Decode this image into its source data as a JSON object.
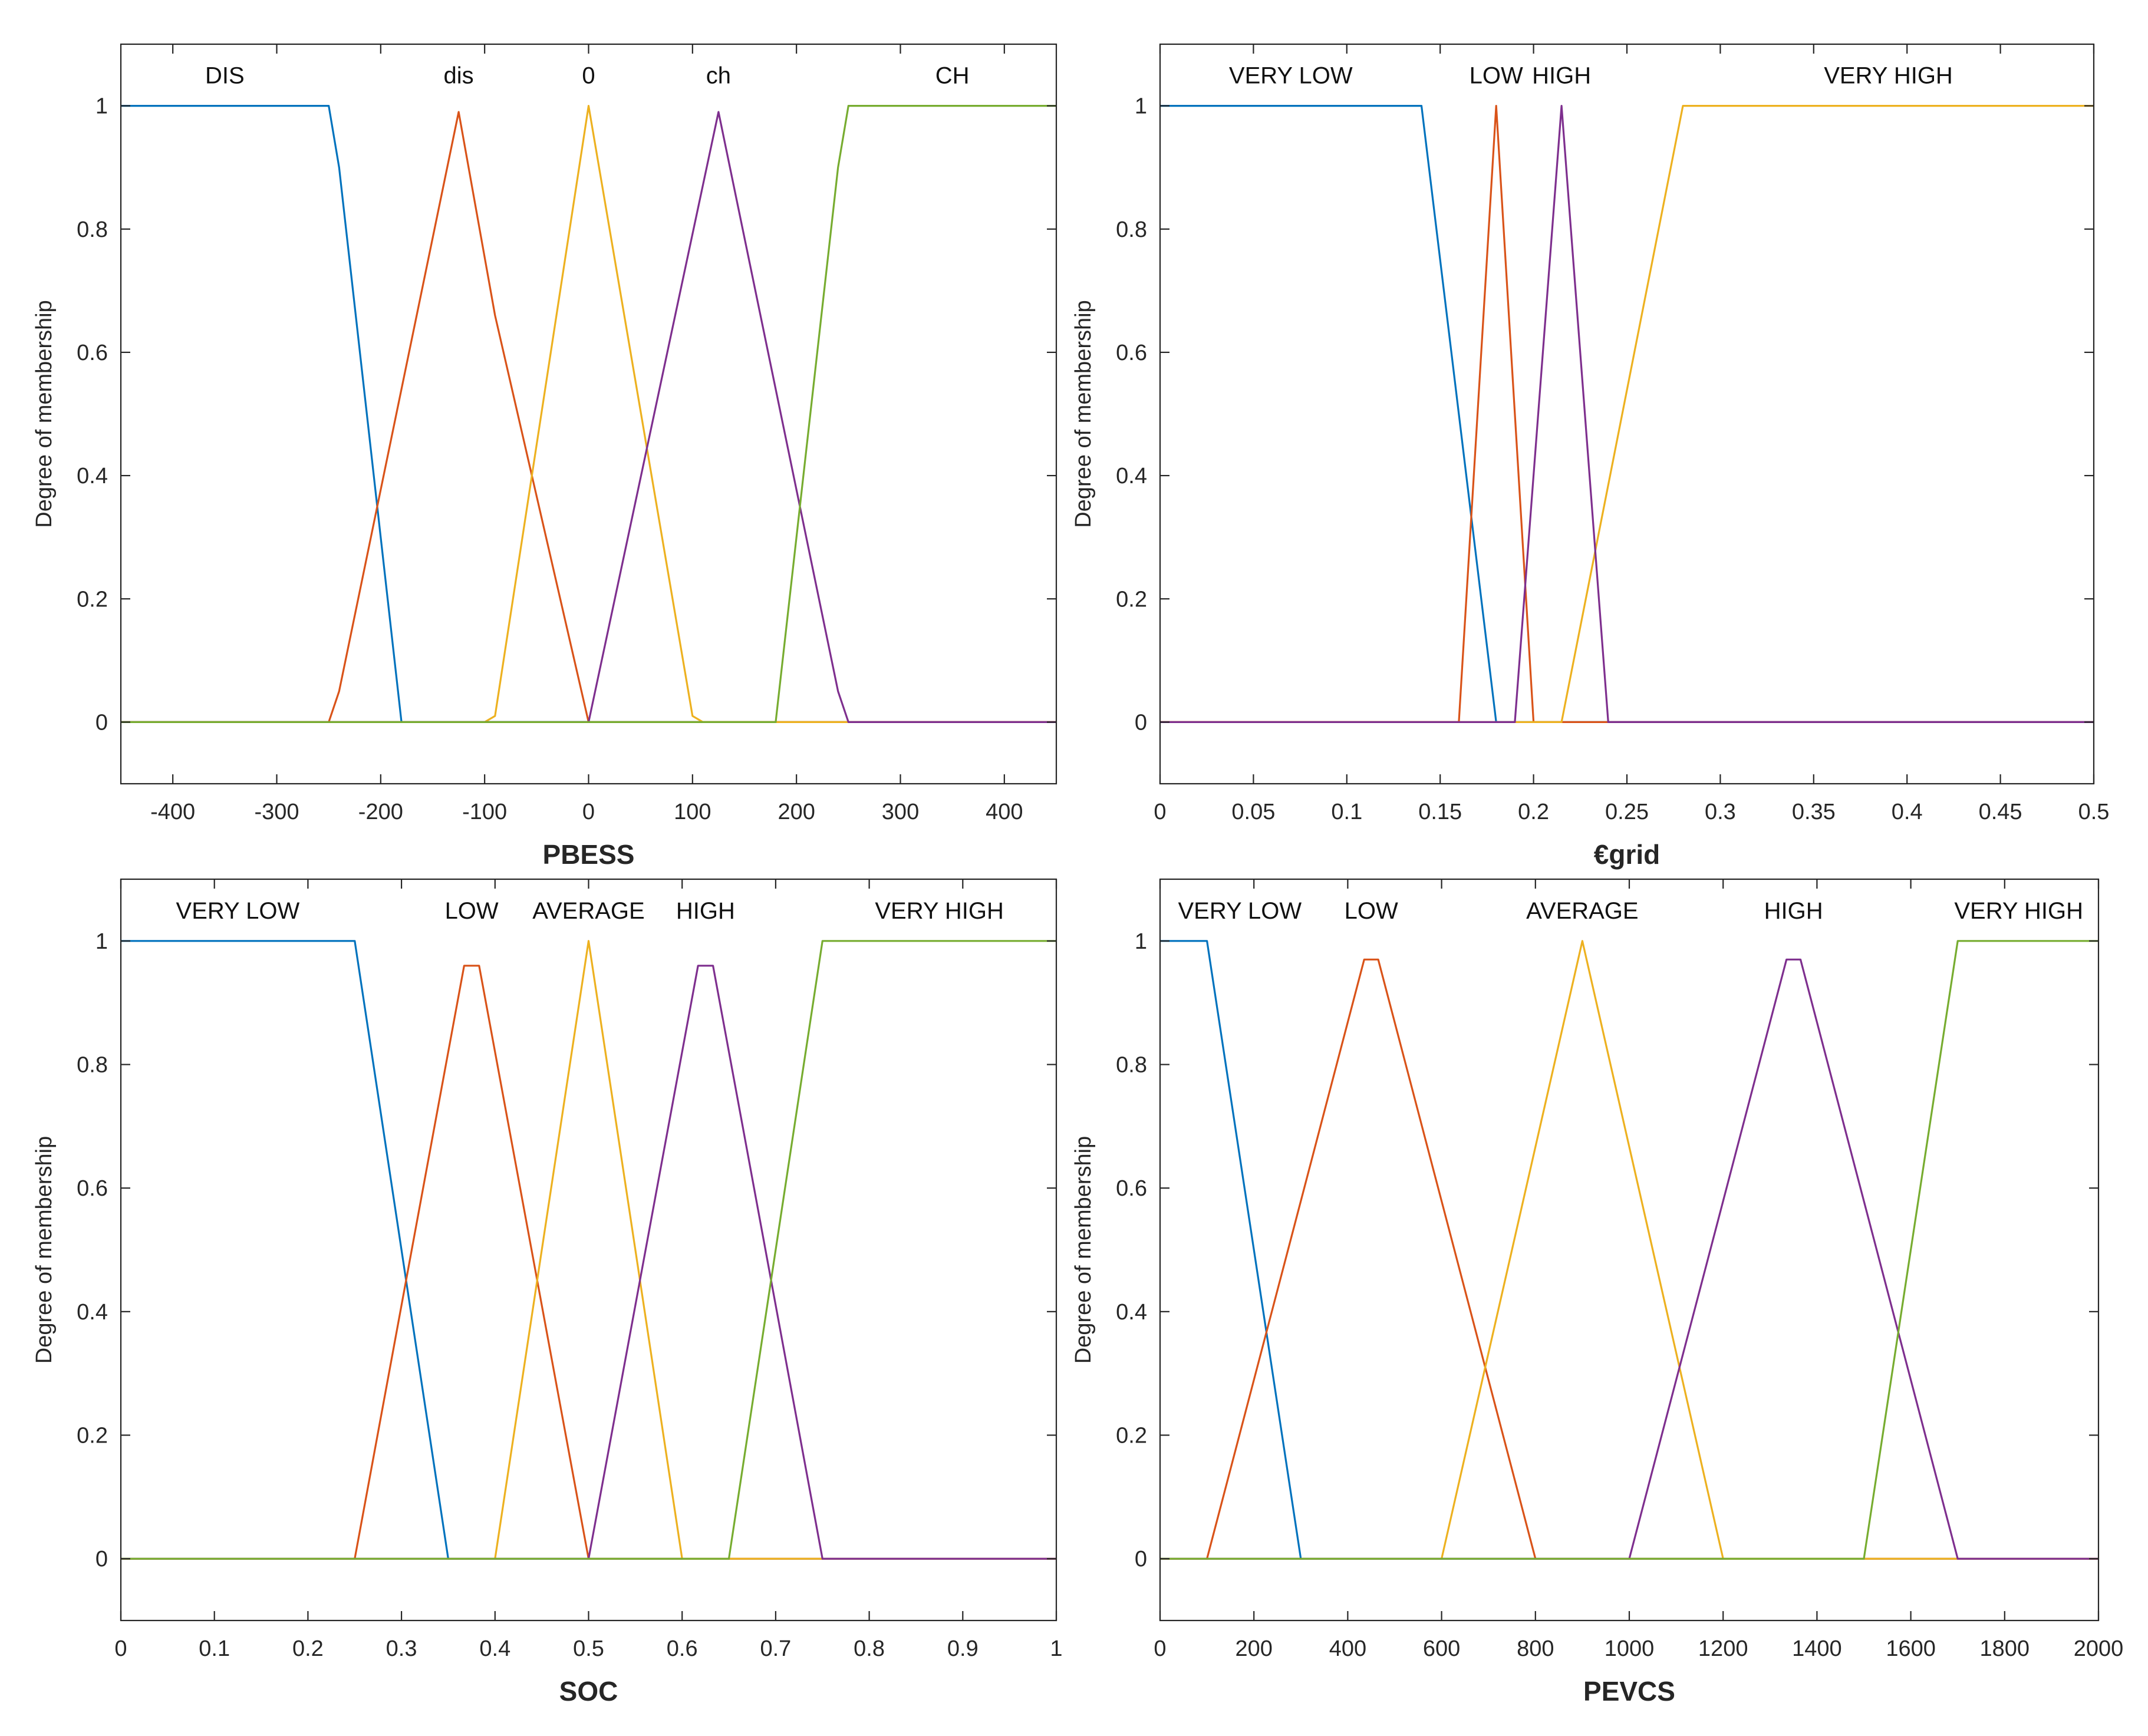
{
  "chart_data": [
    {
      "type": "line",
      "title": "",
      "xlabel": "PBESS",
      "ylabel": "Degree of membership",
      "xlim": [
        -450,
        450
      ],
      "ylim": [
        -0.1,
        1.1
      ],
      "xticks": [
        -400,
        -300,
        -200,
        -100,
        0,
        100,
        200,
        300,
        400
      ],
      "xtick_labels": [
        "-400",
        "-300",
        "-200",
        "-100",
        "0",
        "100",
        "200",
        "300",
        "400"
      ],
      "yticks": [
        0,
        0.2,
        0.4,
        0.6,
        0.8,
        1
      ],
      "ytick_labels": [
        "0",
        "0.2",
        "0.4",
        "0.6",
        "0.8",
        "1"
      ],
      "series": [
        {
          "name": "DIS",
          "color": "#0072BD",
          "label_x": -350,
          "x": [
            -450,
            -250,
            -240,
            -180,
            450
          ],
          "y": [
            1,
            1,
            0.9,
            0,
            0
          ]
        },
        {
          "name": "dis",
          "color": "#D95319",
          "label_x": -125,
          "x": [
            -450,
            -250,
            -240,
            -125,
            -90,
            0,
            450
          ],
          "y": [
            0,
            0,
            0.05,
            0.99,
            0.66,
            0,
            0
          ]
        },
        {
          "name": "0",
          "color": "#EDB120",
          "label_x": 0,
          "x": [
            -450,
            -100,
            -90,
            0,
            100,
            110,
            450
          ],
          "y": [
            0,
            0,
            0.01,
            1,
            0.01,
            0,
            0
          ]
        },
        {
          "name": "ch",
          "color": "#7E2F8E",
          "label_x": 125,
          "x": [
            -450,
            0,
            125,
            240,
            250,
            450
          ],
          "y": [
            0,
            0,
            0.99,
            0.05,
            0,
            0
          ]
        },
        {
          "name": "CH",
          "color": "#77AC30",
          "label_x": 350,
          "x": [
            -450,
            180,
            240,
            250,
            450
          ],
          "y": [
            0,
            0,
            0.9,
            1,
            1
          ]
        }
      ]
    },
    {
      "type": "line",
      "title": "",
      "xlabel": "€grid",
      "ylabel": "Degree of membership",
      "xlim": [
        0,
        0.5
      ],
      "ylim": [
        -0.1,
        1.1
      ],
      "xticks": [
        0,
        0.05,
        0.1,
        0.15,
        0.2,
        0.25,
        0.3,
        0.35,
        0.4,
        0.45,
        0.5
      ],
      "xtick_labels": [
        "0",
        "0.05",
        "0.1",
        "0.15",
        "0.2",
        "0.25",
        "0.3",
        "0.35",
        "0.4",
        "0.45",
        "0.5"
      ],
      "yticks": [
        0,
        0.2,
        0.4,
        0.6,
        0.8,
        1
      ],
      "ytick_labels": [
        "0",
        "0.2",
        "0.4",
        "0.6",
        "0.8",
        "1"
      ],
      "series": [
        {
          "name": "VERY LOW",
          "color": "#0072BD",
          "label_x": 0.07,
          "x": [
            0,
            0.14,
            0.18,
            0.5
          ],
          "y": [
            1,
            1,
            0,
            0
          ]
        },
        {
          "name": "LOW",
          "color": "#D95319",
          "label_x": 0.18,
          "x": [
            0,
            0.16,
            0.18,
            0.2,
            0.5
          ],
          "y": [
            0,
            0,
            1,
            0,
            0
          ]
        },
        {
          "name": "HIGH",
          "color": "#EDB120",
          "label_x": 0.215,
          "x": [
            0,
            0.215,
            0.28,
            0.5
          ],
          "y": [
            0,
            0,
            1,
            1
          ]
        },
        {
          "name": "VERY HIGH",
          "color": "#7E2F8E",
          "label_x": 0.39,
          "x": [
            0,
            0.19,
            0.215,
            0.24,
            0.5
          ],
          "y": [
            0,
            0,
            1,
            0,
            0
          ]
        }
      ]
    },
    {
      "type": "line",
      "title": "",
      "xlabel": "SOC",
      "ylabel": "Degree of membership",
      "xlim": [
        0,
        1
      ],
      "ylim": [
        -0.1,
        1.1
      ],
      "xticks": [
        0,
        0.1,
        0.2,
        0.3,
        0.4,
        0.5,
        0.6,
        0.7,
        0.8,
        0.9,
        1
      ],
      "xtick_labels": [
        "0",
        "0.1",
        "0.2",
        "0.3",
        "0.4",
        "0.5",
        "0.6",
        "0.7",
        "0.8",
        "0.9",
        "1"
      ],
      "yticks": [
        0,
        0.2,
        0.4,
        0.6,
        0.8,
        1
      ],
      "ytick_labels": [
        "0",
        "0.2",
        "0.4",
        "0.6",
        "0.8",
        "1"
      ],
      "series": [
        {
          "name": "VERY LOW",
          "color": "#0072BD",
          "label_x": 0.125,
          "x": [
            0,
            0.25,
            0.35,
            1
          ],
          "y": [
            1,
            1,
            0,
            0
          ]
        },
        {
          "name": "LOW",
          "color": "#D95319",
          "label_x": 0.375,
          "x": [
            0,
            0.25,
            0.367,
            0.383,
            0.5,
            1
          ],
          "y": [
            0,
            0,
            0.96,
            0.96,
            0,
            0
          ]
        },
        {
          "name": "AVERAGE",
          "color": "#EDB120",
          "label_x": 0.5,
          "x": [
            0,
            0.4,
            0.5,
            0.6,
            1
          ],
          "y": [
            0,
            0,
            1,
            0,
            0
          ]
        },
        {
          "name": "HIGH",
          "color": "#7E2F8E",
          "label_x": 0.625,
          "x": [
            0,
            0.5,
            0.617,
            0.633,
            0.75,
            1
          ],
          "y": [
            0,
            0,
            0.96,
            0.96,
            0,
            0
          ]
        },
        {
          "name": "VERY HIGH",
          "color": "#77AC30",
          "label_x": 0.875,
          "x": [
            0,
            0.65,
            0.75,
            1
          ],
          "y": [
            0,
            0,
            1,
            1
          ]
        }
      ]
    },
    {
      "type": "line",
      "title": "",
      "xlabel": "PEVCS",
      "ylabel": "Degree of membership",
      "xlim": [
        0,
        2000
      ],
      "ylim": [
        -0.1,
        1.1
      ],
      "xticks": [
        0,
        200,
        400,
        600,
        800,
        1000,
        1200,
        1400,
        1600,
        1800,
        2000
      ],
      "xtick_labels": [
        "0",
        "200",
        "400",
        "600",
        "800",
        "1000",
        "1200",
        "1400",
        "1600",
        "1800",
        "2000"
      ],
      "yticks": [
        0,
        0.2,
        0.4,
        0.6,
        0.8,
        1
      ],
      "ytick_labels": [
        "0",
        "0.2",
        "0.4",
        "0.6",
        "0.8",
        "1"
      ],
      "series": [
        {
          "name": "VERY LOW",
          "color": "#0072BD",
          "label_x": 170,
          "x": [
            0,
            100,
            300,
            2000
          ],
          "y": [
            1,
            1,
            0,
            0
          ]
        },
        {
          "name": "LOW",
          "color": "#D95319",
          "label_x": 450,
          "x": [
            0,
            100,
            435,
            465,
            800,
            2000
          ],
          "y": [
            0,
            0,
            0.97,
            0.97,
            0,
            0
          ]
        },
        {
          "name": "AVERAGE",
          "color": "#EDB120",
          "label_x": 900,
          "x": [
            0,
            600,
            900,
            1200,
            2000
          ],
          "y": [
            0,
            0,
            1,
            0,
            0
          ]
        },
        {
          "name": "HIGH",
          "color": "#7E2F8E",
          "label_x": 1350,
          "x": [
            0,
            1000,
            1335,
            1365,
            1700,
            2000
          ],
          "y": [
            0,
            0,
            0.97,
            0.97,
            0,
            0
          ]
        },
        {
          "name": "VERY HIGH",
          "color": "#77AC30",
          "label_x": 1830,
          "x": [
            0,
            1500,
            1700,
            2000
          ],
          "y": [
            0,
            0,
            1,
            1
          ]
        }
      ]
    }
  ]
}
